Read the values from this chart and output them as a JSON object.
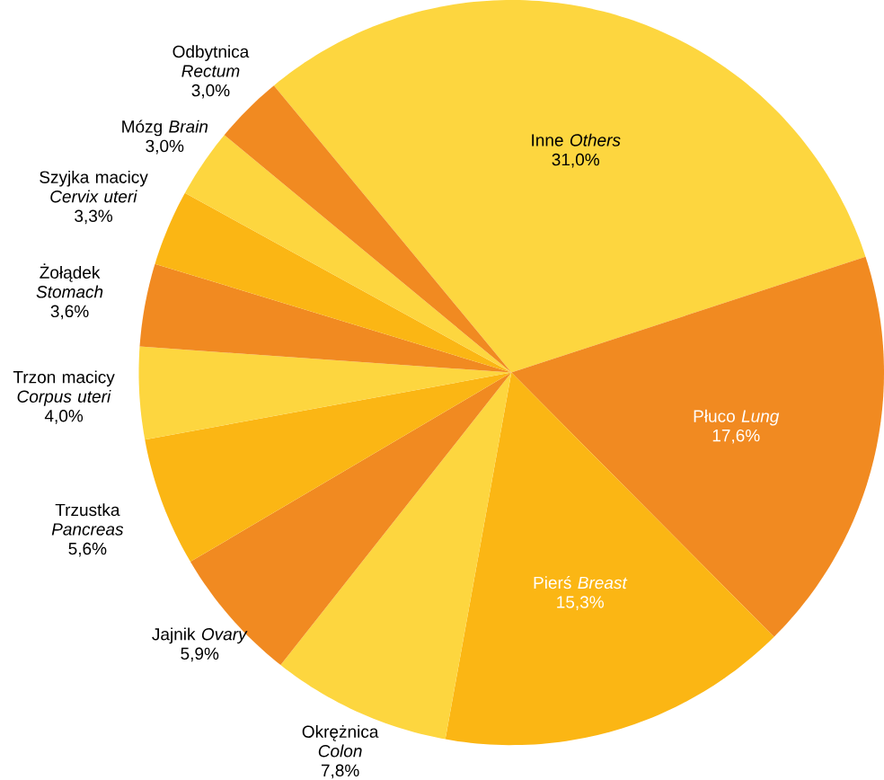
{
  "chart_data": {
    "type": "pie",
    "categories": [
      "Inne *Others*",
      "Płuco *Lung*",
      "Pierś *Breast*",
      "Okrężnica *Colon*",
      "Jajnik *Ovary*",
      "Trzustka *Pancreas*",
      "Trzon macicy *Corpus uteri*",
      "Żołądek *Stomach*",
      "Szyjka macicy *Cervix uteri*",
      "Mózg *Brain*",
      "Odbytnica *Rectum*"
    ],
    "values": [
      31.0,
      17.6,
      15.3,
      7.8,
      5.9,
      5.6,
      4.0,
      3.6,
      3.3,
      3.0,
      3.0
    ],
    "value_labels": [
      "31,0%",
      "17,6%",
      "15,3%",
      "7,8%",
      "5,9%",
      "5,6%",
      "4,0%",
      "3,6%",
      "3,3%",
      "3,0%",
      "3,0%"
    ],
    "colors": [
      "#fdd63f",
      "#f18a21",
      "#fbb614",
      "#fdd63f",
      "#f18a21",
      "#fbb614",
      "#fdd63f",
      "#f18a21",
      "#fbb614",
      "#fdd63f",
      "#f18a21"
    ]
  }
}
